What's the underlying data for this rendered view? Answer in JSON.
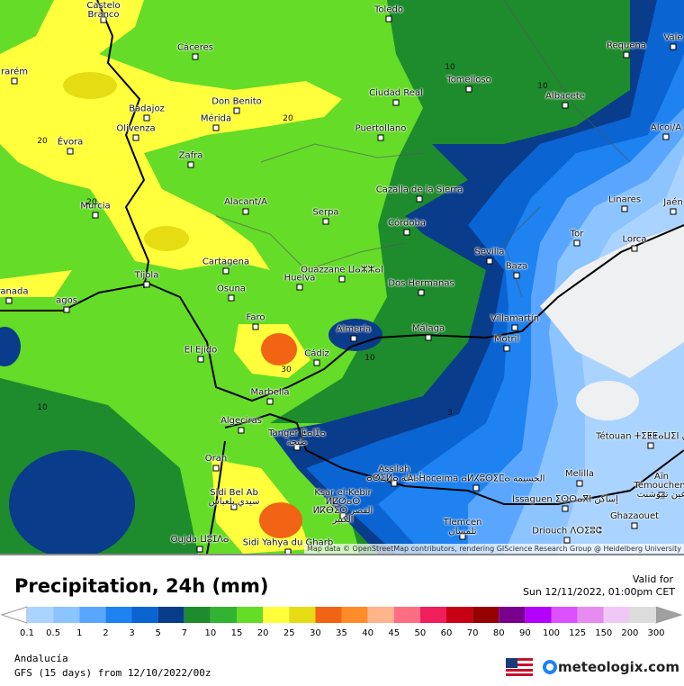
{
  "map": {
    "cities": [
      "Castelo Branco",
      "Toledo",
      "Cáceres",
      "Requena",
      "Vale",
      "Tomelloso",
      "Ciudad Real",
      "Albacete",
      "Badajoz",
      "Don Benito",
      "Mérida",
      "Olivenza",
      "Puertollano",
      "Évora",
      "rarém",
      "Alcoi/A",
      "Zafra",
      "Alacant/A",
      "Cazalla de la Sierra",
      "Linares",
      "Murcia",
      "Serpa",
      "Córdoba",
      "Jaén",
      "Tor",
      "Lorca",
      "Cartagena",
      "Sevilla",
      "Baza",
      "Tíjola",
      "Huelva",
      "Osuna",
      "Dos Hermanas",
      "Granada",
      "agos",
      "Faro",
      "Villamartín",
      "Almería",
      "Málaga",
      "Motril",
      "El Ejido",
      "Cádiz",
      "Marbella",
      "Algeciras",
      "Tanger ⵟⴰⵏⵊⴰ طنجة",
      "Tétouan ⵜⵉⵟⵟⴰⵡⵉⵏ تطوان",
      "Oran",
      "Assilah ⴰⵚⵉⵍⴰ أصيلة",
      "Al Hoceima ⴰⵍⵃⵓⵙⵉⵎⴰ الحسيمة",
      "Melilla",
      "Aïn Témouchent عين تموشنت",
      "Sidi Bel Ab سيدي بلعباس",
      "Ksar el-Kebir ⵍⵇⵚⴰⵔ ⵍⴽⴱⵉⵔ القصر الكبير",
      "Issaguen ⵉⵙⵙⴰⴳⵏ إساكن",
      "Ghazaouet",
      "Tlemcen تلمسان",
      "Driouch ⴷⵔⵉⵓⵛ",
      "Oujda ⵡⵓⵊⴷⴰ",
      "Sidi Yahya du Gharb",
      "Ouazzane ⵡⴰⵣⵣⴰⵏ"
    ],
    "contour_labels": [
      "20",
      "20",
      "20",
      "10",
      "10",
      "10",
      "10",
      "30",
      "3"
    ],
    "attribution": "Map data © OpenStreetMap contributors, rendering GIScience Research Group @ Heidelberg University"
  },
  "footer": {
    "title": "Precipitation, 24h (mm)",
    "valid_label": "Valid for",
    "valid_time": "Sun 12/11/2022, 01:00pm CET",
    "region": "Andalucía",
    "model": "GFS (15 days) from 12/10/2022/00z",
    "brand": "meteologix.com"
  },
  "legend": {
    "values": [
      0.1,
      0.5,
      1,
      2,
      3,
      5,
      7,
      10,
      15,
      20,
      25,
      30,
      35,
      40,
      45,
      50,
      60,
      70,
      80,
      90,
      100,
      125,
      150,
      200,
      300
    ],
    "colors": [
      "#aad4ff",
      "#8cc4ff",
      "#5aa6ff",
      "#1e82f0",
      "#0a64d2",
      "#0a3c8c",
      "#1e8c2d",
      "#32b432",
      "#64dc28",
      "#ffff3c",
      "#e6dc14",
      "#f06414",
      "#ff8c28",
      "#ffb48c",
      "#ff6e82",
      "#f01e5a",
      "#c80014",
      "#960000",
      "#78008c",
      "#b400ff",
      "#dc50ff",
      "#e68cf0",
      "#f0c8f5",
      "#dcdcdc"
    ],
    "below_color": "#ffffff",
    "above_color": "#a0a0a0"
  }
}
